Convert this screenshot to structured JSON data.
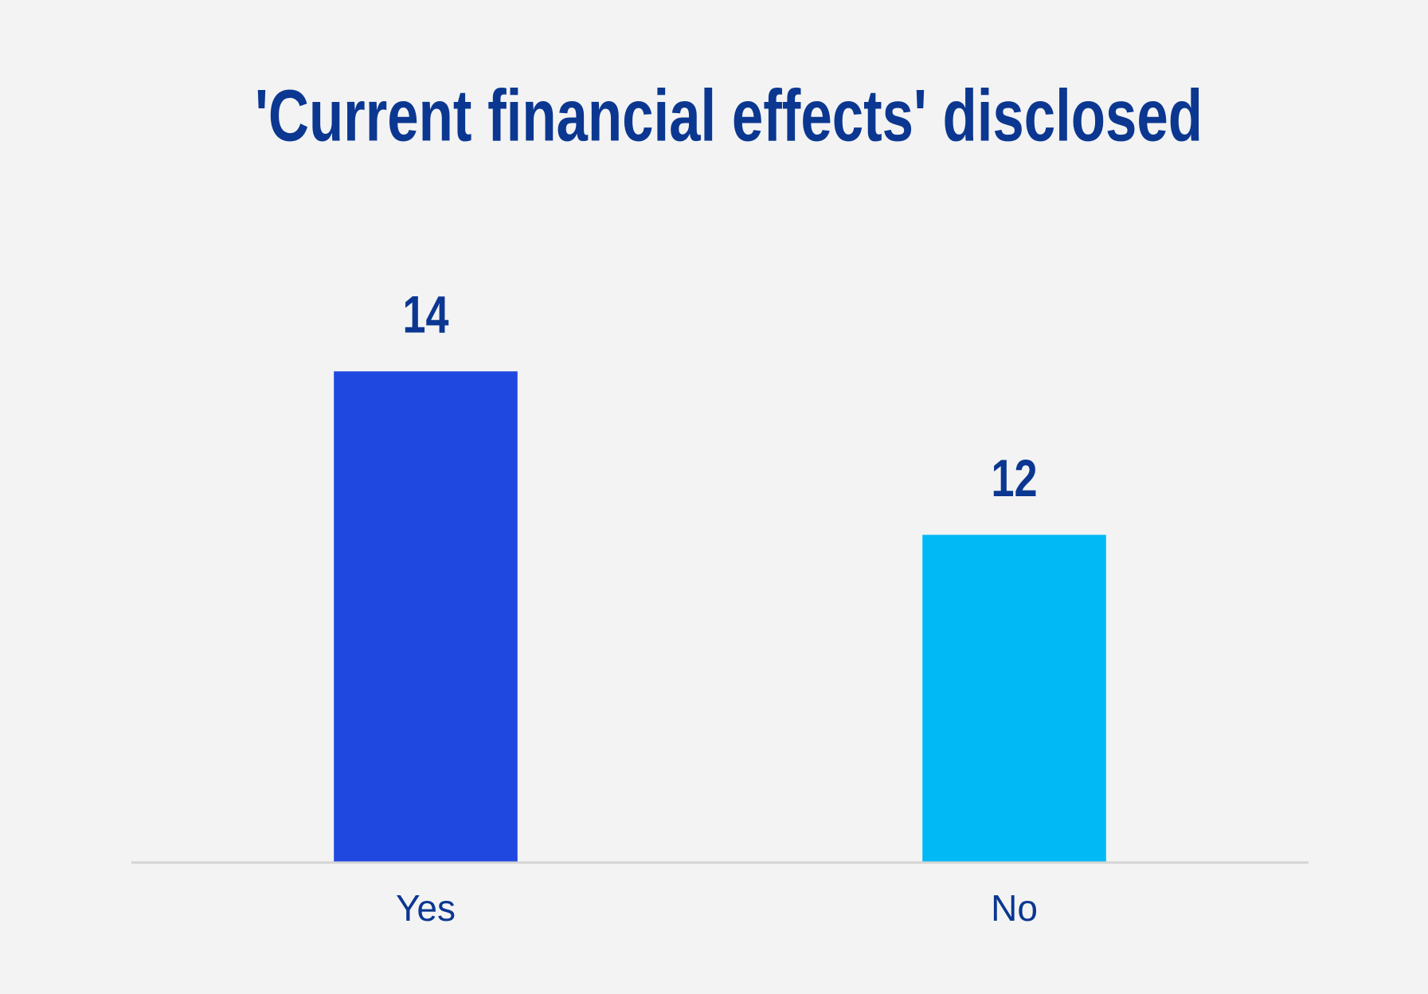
{
  "chart_data": {
    "type": "bar",
    "title": "'Current financial effects' disclosed",
    "categories": [
      "Yes",
      "No"
    ],
    "values": [
      14,
      12
    ],
    "colors": [
      "#1f48e0",
      "#00b9f5"
    ],
    "ylim": [
      8,
      16
    ],
    "grid": false
  }
}
